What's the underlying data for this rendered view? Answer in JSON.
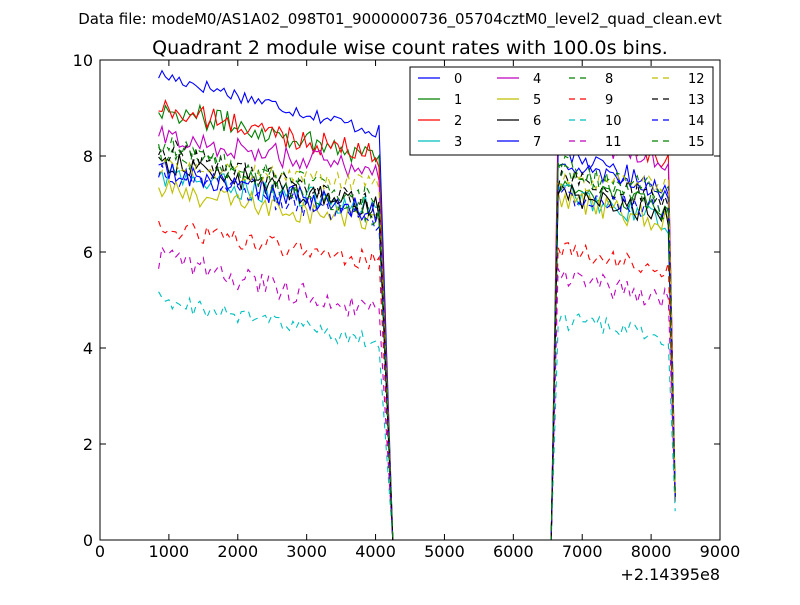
{
  "chart_data": {
    "type": "line",
    "suptitle": "Data file: modeM0/AS1A02_098T01_9000000736_05704cztM0_level2_quad_clean.evt",
    "title": "Quadrant 2 module wise count rates with 100.0s bins.",
    "xlabel": "",
    "ylabel": "",
    "x_offset_label": "+2.14395e8",
    "xlim": [
      0,
      9000
    ],
    "ylim": [
      0,
      10
    ],
    "xticks": [
      0,
      1000,
      2000,
      3000,
      4000,
      5000,
      6000,
      7000,
      8000,
      9000
    ],
    "yticks": [
      0,
      2,
      4,
      6,
      8,
      10
    ],
    "grid": false,
    "legend_position": "top-right",
    "segments": [
      {
        "x_start": 850,
        "x_end": 4050
      },
      {
        "x_start": 6650,
        "x_end": 8250
      }
    ],
    "gap": {
      "x_start": 4250,
      "x_end": 6550,
      "value": 0
    },
    "end_x": 8350,
    "series": [
      {
        "name": "0",
        "color": "#0000ff",
        "style": "solid",
        "level_a": 9.7,
        "level_b": 8.5,
        "noise": 0.15,
        "level_c": 7.8,
        "level_d": 7.3,
        "end_value": 0.9
      },
      {
        "name": "1",
        "color": "#008000",
        "style": "solid",
        "level_a": 9.0,
        "level_b": 8.0,
        "noise": 0.25,
        "level_c": 7.4,
        "level_d": 6.9,
        "end_value": 0.9
      },
      {
        "name": "2",
        "color": "#ff0000",
        "style": "solid",
        "level_a": 9.0,
        "level_b": 8.0,
        "noise": 0.25,
        "level_c": 8.6,
        "level_d": 7.9,
        "end_value": 1.0
      },
      {
        "name": "3",
        "color": "#00bfbf",
        "style": "solid",
        "level_a": 7.6,
        "level_b": 6.9,
        "noise": 0.25,
        "level_c": 7.3,
        "level_d": 6.6,
        "end_value": 0.9
      },
      {
        "name": "4",
        "color": "#bf00bf",
        "style": "solid",
        "level_a": 8.4,
        "level_b": 7.7,
        "noise": 0.25,
        "level_c": 8.4,
        "level_d": 7.9,
        "end_value": 1.0
      },
      {
        "name": "5",
        "color": "#bfbf00",
        "style": "solid",
        "level_a": 7.3,
        "level_b": 6.6,
        "noise": 0.25,
        "level_c": 7.1,
        "level_d": 6.6,
        "end_value": 0.9
      },
      {
        "name": "6",
        "color": "#000000",
        "style": "solid",
        "level_a": 7.9,
        "level_b": 6.9,
        "noise": 0.25,
        "level_c": 7.2,
        "level_d": 6.8,
        "end_value": 0.9
      },
      {
        "name": "7",
        "color": "#0000ff",
        "style": "solid",
        "level_a": 7.7,
        "level_b": 6.8,
        "noise": 0.25,
        "level_c": 8.2,
        "level_d": 7.2,
        "end_value": 0.9
      },
      {
        "name": "8",
        "color": "#008000",
        "style": "dashed",
        "level_a": 8.1,
        "level_b": 7.1,
        "noise": 0.25,
        "level_c": 7.7,
        "level_d": 7.3,
        "end_value": 0.9
      },
      {
        "name": "9",
        "color": "#ff0000",
        "style": "dashed",
        "level_a": 6.5,
        "level_b": 5.8,
        "noise": 0.2,
        "level_c": 6.1,
        "level_d": 5.6,
        "end_value": 0.8
      },
      {
        "name": "10",
        "color": "#00bfbf",
        "style": "dashed",
        "level_a": 5.0,
        "level_b": 4.1,
        "noise": 0.2,
        "level_c": 4.6,
        "level_d": 4.2,
        "end_value": 0.6
      },
      {
        "name": "11",
        "color": "#bf00bf",
        "style": "dashed",
        "level_a": 5.9,
        "level_b": 4.7,
        "noise": 0.25,
        "level_c": 5.5,
        "level_d": 5.0,
        "end_value": 0.8
      },
      {
        "name": "12",
        "color": "#bfbf00",
        "style": "dashed",
        "level_a": 7.8,
        "level_b": 7.4,
        "noise": 0.2,
        "level_c": 7.5,
        "level_d": 7.4,
        "end_value": 0.9
      },
      {
        "name": "13",
        "color": "#000000",
        "style": "dashed",
        "level_a": 8.2,
        "level_b": 6.9,
        "noise": 0.25,
        "level_c": 7.5,
        "level_d": 7.1,
        "end_value": 0.9
      },
      {
        "name": "14",
        "color": "#0000ff",
        "style": "dashed",
        "level_a": 7.7,
        "level_b": 6.6,
        "noise": 0.25,
        "level_c": 7.2,
        "level_d": 6.9,
        "end_value": 0.9
      },
      {
        "name": "15",
        "color": "#008000",
        "style": "dashed",
        "level_a": 8.3,
        "level_b": 6.7,
        "noise": 0.25,
        "level_c": 7.9,
        "level_d": 6.8,
        "end_value": 0.9
      }
    ]
  }
}
